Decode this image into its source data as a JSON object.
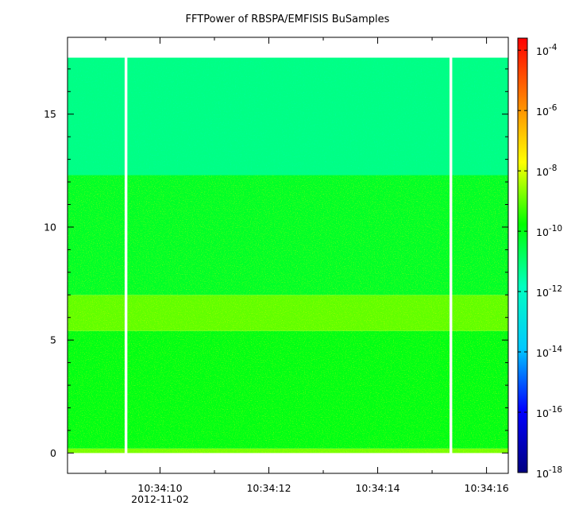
{
  "chart_data": {
    "type": "heatmap",
    "title": "FFTPower of RBSPA/EMFISIS  BuSamples",
    "xlabel": "",
    "ylabel": "",
    "x_axis": {
      "range_seconds": [
        8.3,
        16.4
      ],
      "major_ticks": [
        {
          "t": 10,
          "label": "10:34:10"
        },
        {
          "t": 12,
          "label": "10:34:12"
        },
        {
          "t": 14,
          "label": "10:34:14"
        },
        {
          "t": 16,
          "label": "10:34:16"
        }
      ],
      "minor_ticks": [
        9,
        11,
        13,
        15
      ],
      "date_label": "2012-11-02"
    },
    "y_axis": {
      "range": [
        -0.9,
        18.4
      ],
      "ticks": [
        0,
        5,
        10,
        15
      ]
    },
    "data_extent": {
      "y": [
        0,
        17.5
      ],
      "gaps_seconds": [
        [
          9.35,
          9.4
        ],
        [
          15.32,
          15.37
        ]
      ]
    },
    "bands": [
      {
        "y": [
          0,
          0.2
        ],
        "log10_power": -8.8
      },
      {
        "y": [
          0.2,
          5.4
        ],
        "log10_power": -10
      },
      {
        "y": [
          5.4,
          7.0
        ],
        "log10_power": -9.0
      },
      {
        "y": [
          7.0,
          12.3
        ],
        "log10_power": -10.2
      },
      {
        "y": [
          12.3,
          17.5
        ],
        "log10_power": -11.2
      }
    ],
    "colorbar": {
      "scale": "log",
      "range_exponent": [
        -18,
        -3.6
      ],
      "ticks": [
        {
          "exp": -4,
          "base": "10",
          "sup": "-4"
        },
        {
          "exp": -6,
          "base": "10",
          "sup": "-6"
        },
        {
          "exp": -8,
          "base": "10",
          "sup": "-8"
        },
        {
          "exp": -10,
          "base": "10",
          "sup": "-10"
        },
        {
          "exp": -12,
          "base": "10",
          "sup": "-12"
        },
        {
          "exp": -14,
          "base": "10",
          "sup": "-14"
        },
        {
          "exp": -16,
          "base": "10",
          "sup": "-16"
        },
        {
          "exp": -18,
          "base": "10",
          "sup": "-18"
        }
      ],
      "colormap": [
        "#000080",
        "#0000ff",
        "#00c8ff",
        "#00ffc0",
        "#00ff00",
        "#ffff00",
        "#ff8000",
        "#ff0000"
      ]
    }
  }
}
